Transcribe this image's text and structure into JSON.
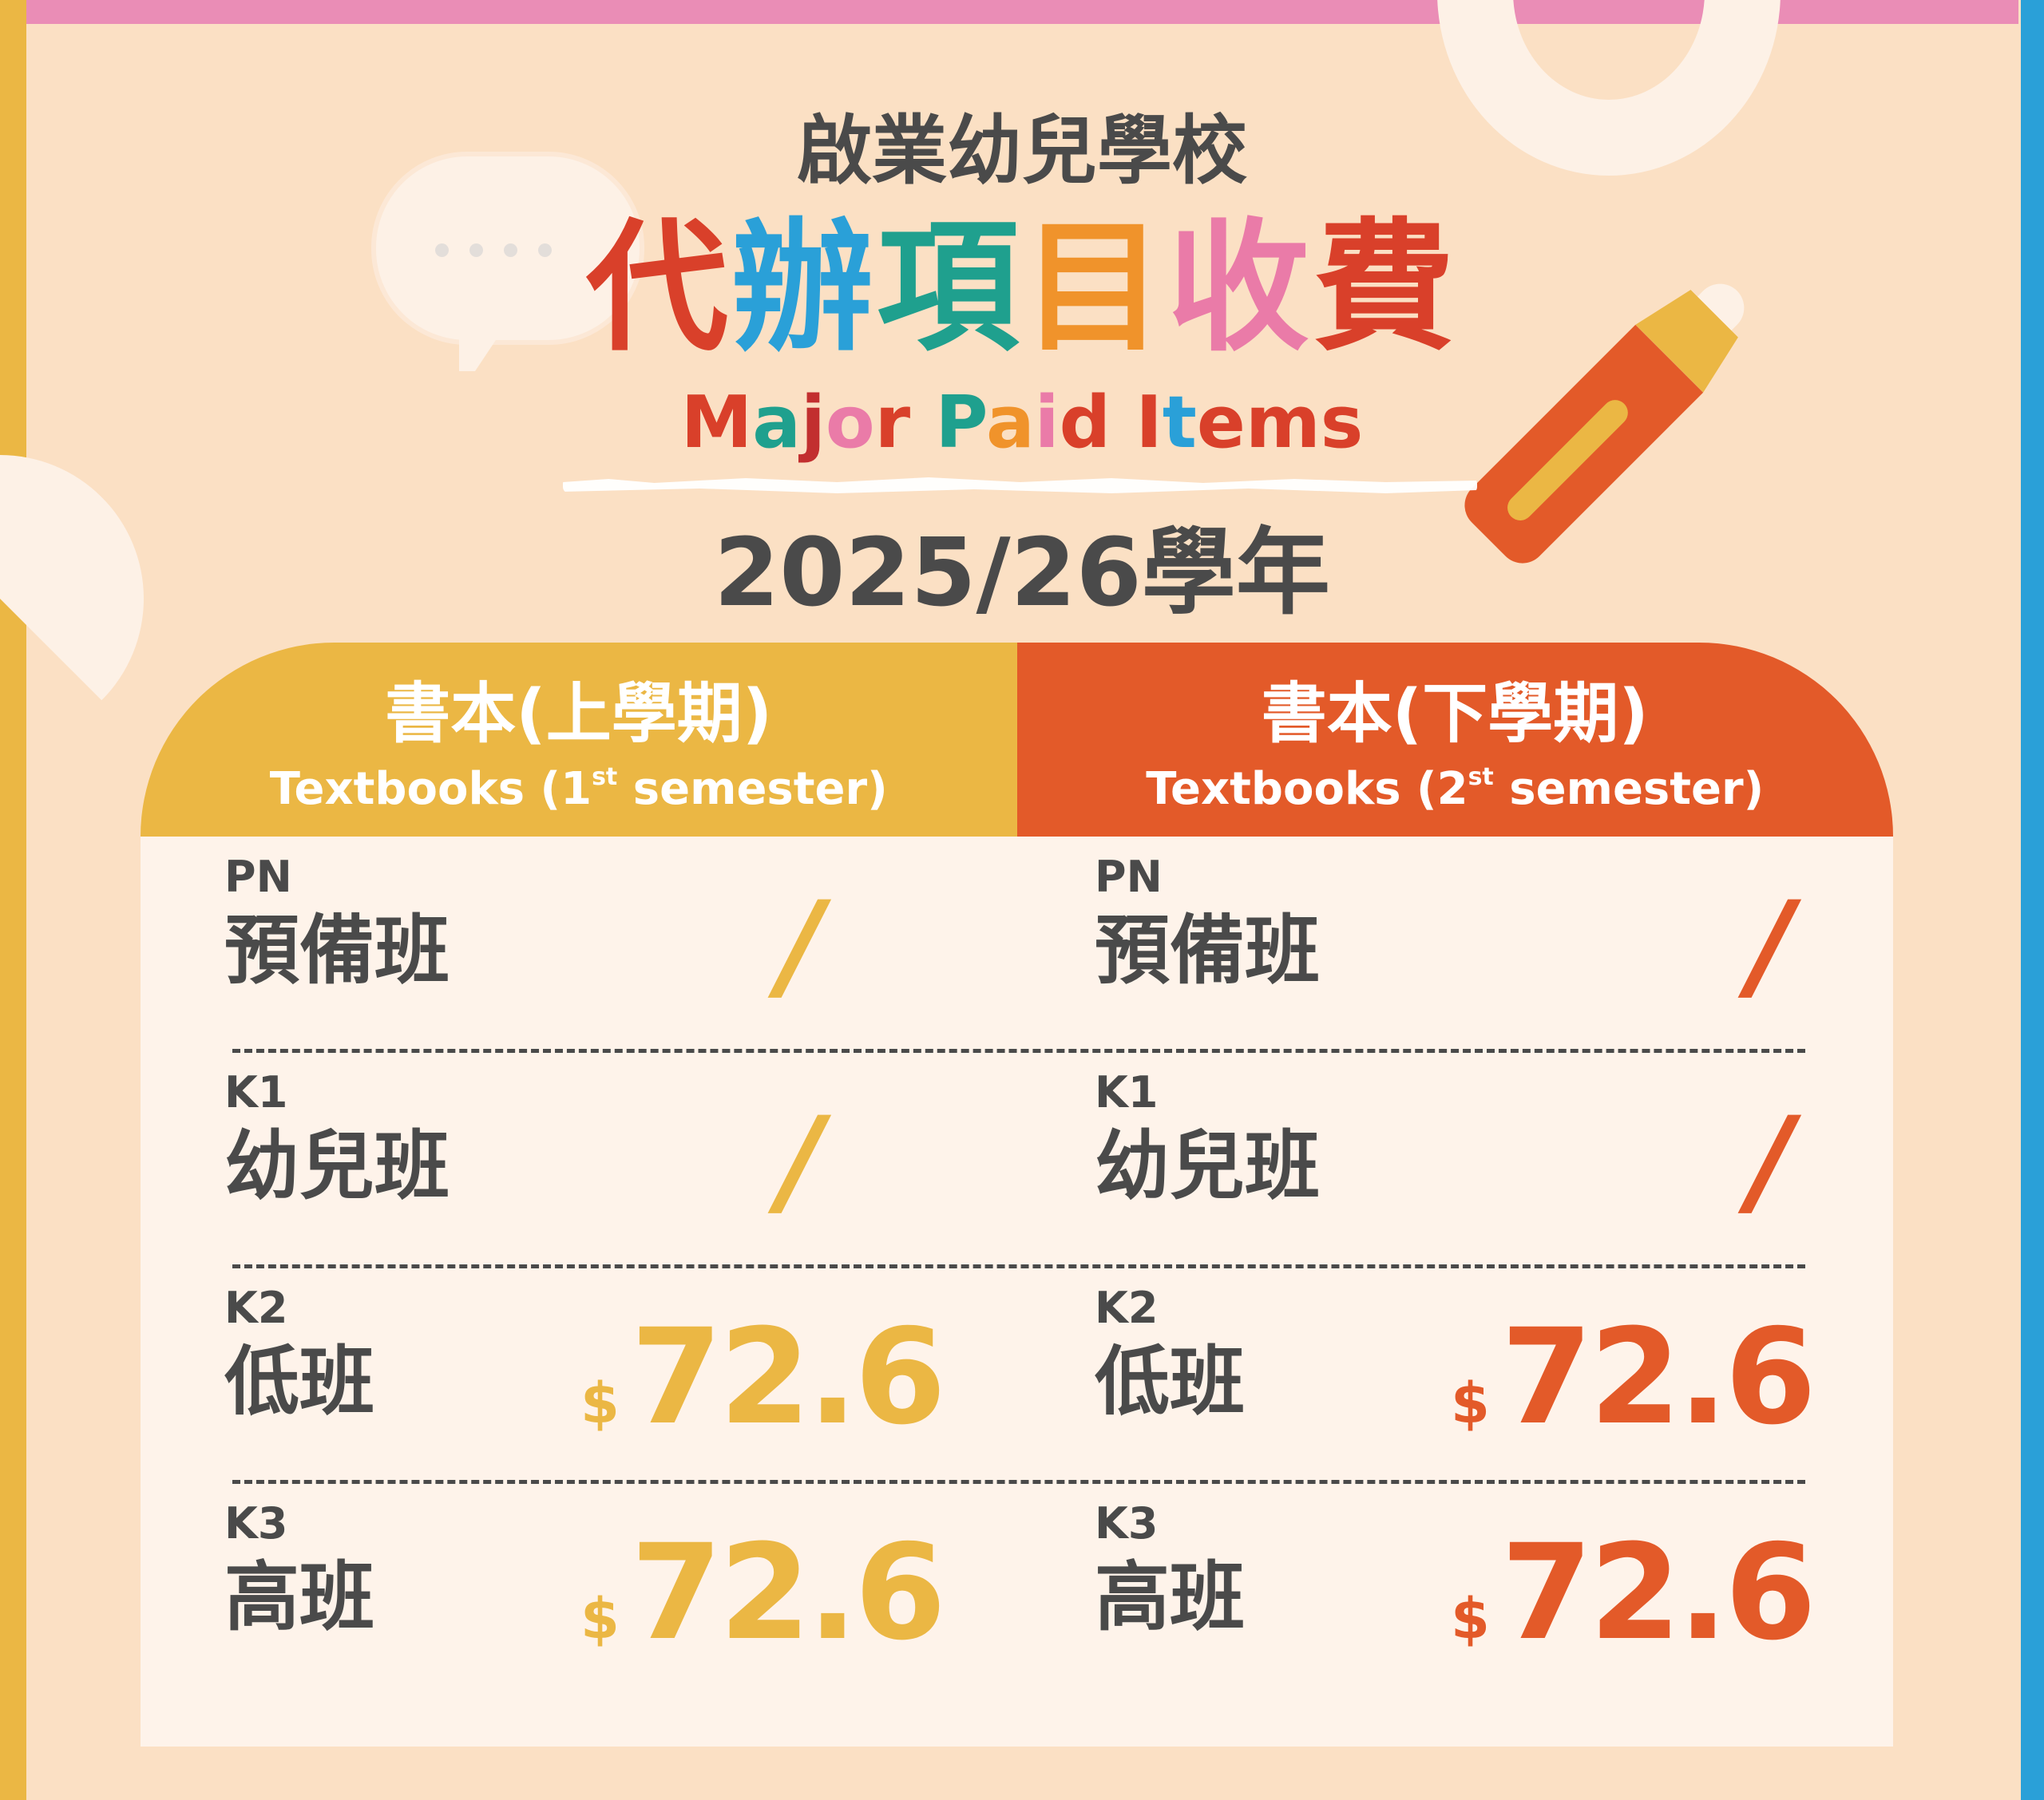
{
  "colors": {
    "background": "#FBE0C4",
    "first_semester": "#EBB744",
    "second_semester": "#E35A29",
    "table_body": "#FEF3EA",
    "text": "#4A4A4A",
    "top_bar": "#EA8DB6",
    "right_bar": "#2AA0D8"
  },
  "header": {
    "school_name": "啟業幼兒學校",
    "title_zh": "代辦項目收費",
    "title_zh_colors": [
      "#D9402A",
      "#2AA0D8",
      "#1FA08E",
      "#F0932B",
      "#EA7BA8",
      "#D9402A"
    ],
    "title_en": "Major Paid Items",
    "title_en_colors": [
      "#D9402A",
      "#1FA08E",
      "#C22F2F",
      "#EA7BA8",
      "#D9402A",
      "#FFFFFF",
      "#1FA08E",
      "#F0932B",
      "#EA7BA8",
      "#D9402A",
      "#FFFFFF",
      "#D9402A",
      "#2AA0D8",
      "#D9402A",
      "#D9402A",
      "#D9402A"
    ],
    "school_year": "2025/26學年"
  },
  "decorations": [
    "speech-bubble-icon",
    "crayon-icon",
    "ring-shape",
    "chalk-underline"
  ],
  "table": {
    "columns": [
      {
        "title_zh": "書本(上學期)",
        "title_en_prefix": "Textbooks  (1",
        "title_en_sup": "st",
        "title_en_suffix": " semester)"
      },
      {
        "title_zh": "書本(下學期)",
        "title_en_prefix": "Textbooks  (2",
        "title_en_sup": "st",
        "title_en_suffix": " semester)"
      }
    ],
    "rows": [
      {
        "code": "PN",
        "name": "預備班",
        "first": "/",
        "second": "/"
      },
      {
        "code": "K1",
        "name": "幼兒班",
        "first": "/",
        "second": "/"
      },
      {
        "code": "K2",
        "name": "低班",
        "currency": "$",
        "first": "72.6",
        "second": "72.6"
      },
      {
        "code": "K3",
        "name": "高班",
        "currency": "$",
        "first": "72.6",
        "second": "72.6"
      }
    ]
  }
}
